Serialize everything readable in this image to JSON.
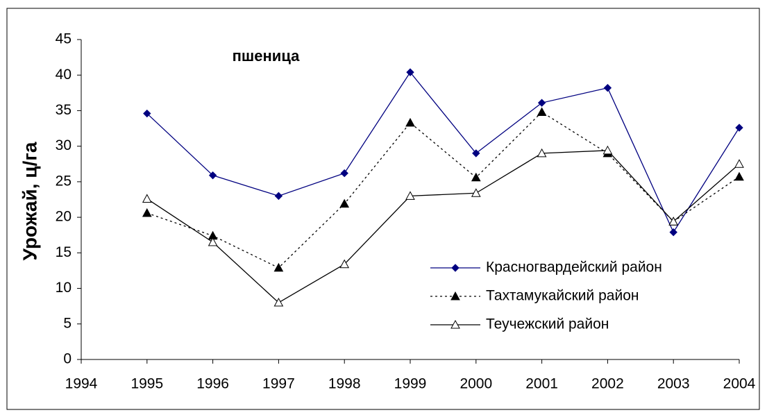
{
  "chart_data": {
    "type": "line",
    "title": "пшеница",
    "ylabel": "Урожай, ц/га",
    "x": [
      1995,
      1996,
      1997,
      1998,
      1999,
      2000,
      2001,
      2002,
      2003,
      2004
    ],
    "xlim": [
      1994,
      2004
    ],
    "xticks": [
      1994,
      1995,
      1996,
      1997,
      1998,
      1999,
      2000,
      2001,
      2002,
      2003,
      2004
    ],
    "ylim": [
      0,
      45
    ],
    "yticks": [
      0,
      5,
      10,
      15,
      20,
      25,
      30,
      35,
      40,
      45
    ],
    "grid": false,
    "legend": "right",
    "series": [
      {
        "name": "Красногвардейский район",
        "color": "#000080",
        "marker": "diamond",
        "dash": "solid",
        "values": [
          34.6,
          25.9,
          23.0,
          26.2,
          40.4,
          29.0,
          36.1,
          38.2,
          17.9,
          32.6
        ]
      },
      {
        "name": "Тахтамукайский район",
        "color": "#000000",
        "marker": "triangle-filled",
        "dash": "dotted",
        "values": [
          20.6,
          17.4,
          12.9,
          21.9,
          33.3,
          25.6,
          34.8,
          29.0,
          19.4,
          25.7
        ]
      },
      {
        "name": "Теучежский район",
        "color": "#000000",
        "marker": "triangle-open",
        "dash": "solid",
        "values": [
          22.6,
          16.5,
          8.0,
          13.4,
          23.0,
          23.4,
          29.0,
          29.4,
          19.4,
          27.5
        ]
      }
    ]
  }
}
